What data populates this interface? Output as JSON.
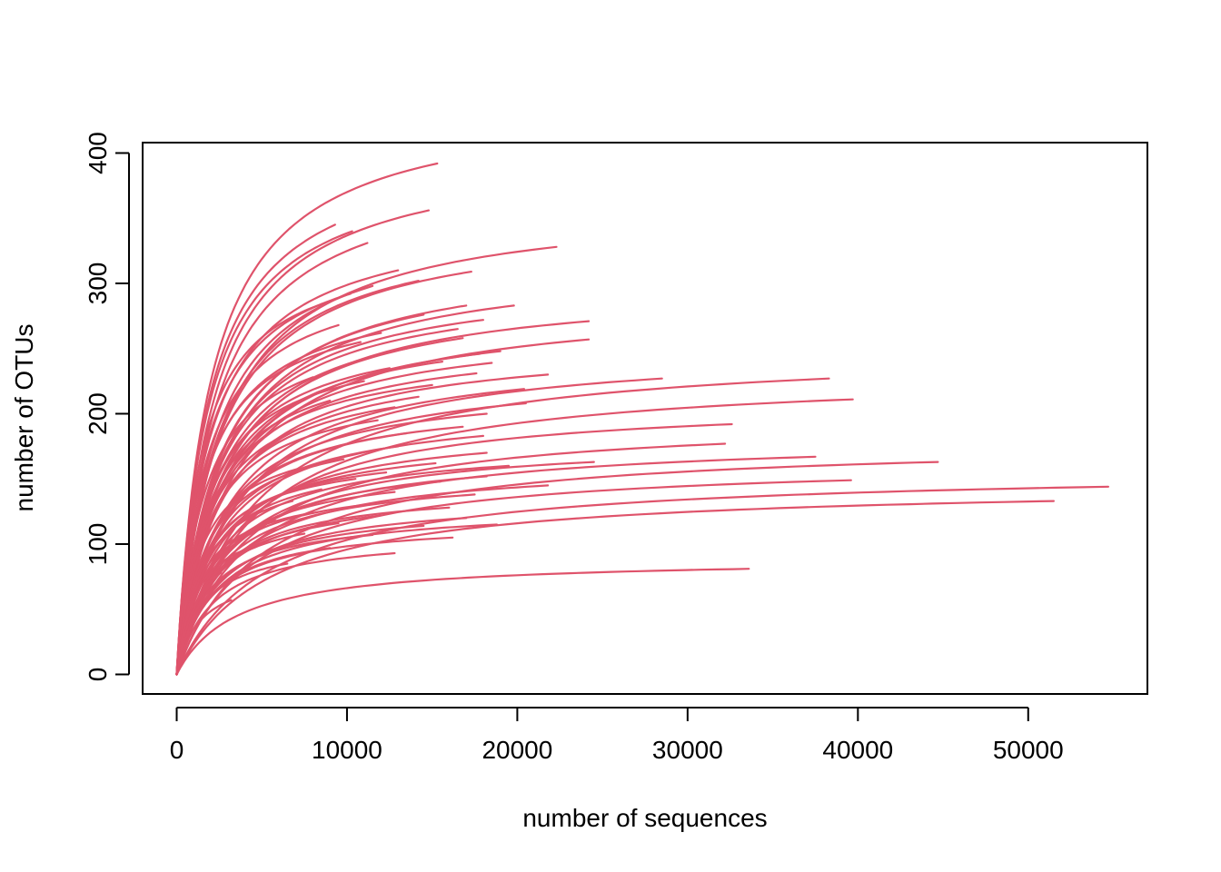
{
  "chart_data": {
    "type": "line",
    "title": "",
    "xlabel": "number of sequences",
    "ylabel": "number of OTUs",
    "xlim": [
      -2000,
      57000
    ],
    "ylim": [
      -15,
      408
    ],
    "xticks": [
      0,
      10000,
      20000,
      30000,
      40000,
      50000
    ],
    "yticks": [
      0,
      100,
      200,
      300,
      400
    ],
    "xtick_labels": [
      "0",
      "10000",
      "20000",
      "30000",
      "40000",
      "50000"
    ],
    "ytick_labels": [
      "0",
      "100",
      "200",
      "300",
      "400"
    ],
    "grid": false,
    "line_color": "#DF536B",
    "series": [
      {
        "n": 15300,
        "s": 392
      },
      {
        "n": 14800,
        "s": 356
      },
      {
        "n": 10300,
        "s": 340
      },
      {
        "n": 9300,
        "s": 345
      },
      {
        "n": 11200,
        "s": 331
      },
      {
        "n": 22300,
        "s": 328
      },
      {
        "n": 13000,
        "s": 310
      },
      {
        "n": 17300,
        "s": 309
      },
      {
        "n": 14200,
        "s": 302
      },
      {
        "n": 11500,
        "s": 298
      },
      {
        "n": 8700,
        "s": 285
      },
      {
        "n": 10200,
        "s": 292
      },
      {
        "n": 19800,
        "s": 283
      },
      {
        "n": 17000,
        "s": 283
      },
      {
        "n": 14500,
        "s": 276
      },
      {
        "n": 24200,
        "s": 271
      },
      {
        "n": 18000,
        "s": 272
      },
      {
        "n": 16500,
        "s": 265
      },
      {
        "n": 24200,
        "s": 257
      },
      {
        "n": 16800,
        "s": 258
      },
      {
        "n": 12000,
        "s": 262
      },
      {
        "n": 9500,
        "s": 268
      },
      {
        "n": 19000,
        "s": 248
      },
      {
        "n": 17800,
        "s": 246
      },
      {
        "n": 13500,
        "s": 250
      },
      {
        "n": 10800,
        "s": 255
      },
      {
        "n": 18500,
        "s": 239
      },
      {
        "n": 15600,
        "s": 240
      },
      {
        "n": 28500,
        "s": 227
      },
      {
        "n": 38300,
        "s": 227
      },
      {
        "n": 21800,
        "s": 230
      },
      {
        "n": 17600,
        "s": 231
      },
      {
        "n": 12500,
        "s": 235
      },
      {
        "n": 39700,
        "s": 211
      },
      {
        "n": 20400,
        "s": 219
      },
      {
        "n": 15000,
        "s": 222
      },
      {
        "n": 11000,
        "s": 225
      },
      {
        "n": 8000,
        "s": 228
      },
      {
        "n": 14200,
        "s": 213
      },
      {
        "n": 20500,
        "s": 208
      },
      {
        "n": 32600,
        "s": 192
      },
      {
        "n": 18200,
        "s": 200
      },
      {
        "n": 12800,
        "s": 205
      },
      {
        "n": 9000,
        "s": 210
      },
      {
        "n": 32200,
        "s": 177
      },
      {
        "n": 16800,
        "s": 190
      },
      {
        "n": 11800,
        "s": 195
      },
      {
        "n": 18000,
        "s": 183
      },
      {
        "n": 13500,
        "s": 185
      },
      {
        "n": 7500,
        "s": 190
      },
      {
        "n": 37500,
        "s": 167
      },
      {
        "n": 24500,
        "s": 163
      },
      {
        "n": 18200,
        "s": 170
      },
      {
        "n": 13000,
        "s": 175
      },
      {
        "n": 44700,
        "s": 163
      },
      {
        "n": 19500,
        "s": 160
      },
      {
        "n": 15200,
        "s": 162
      },
      {
        "n": 9800,
        "s": 165
      },
      {
        "n": 39600,
        "s": 149
      },
      {
        "n": 18200,
        "s": 152
      },
      {
        "n": 12300,
        "s": 155
      },
      {
        "n": 7200,
        "s": 158
      },
      {
        "n": 54700,
        "s": 144
      },
      {
        "n": 21800,
        "s": 145
      },
      {
        "n": 15500,
        "s": 148
      },
      {
        "n": 10500,
        "s": 150
      },
      {
        "n": 17500,
        "s": 138
      },
      {
        "n": 12800,
        "s": 140
      },
      {
        "n": 8500,
        "s": 142
      },
      {
        "n": 51500,
        "s": 133
      },
      {
        "n": 16000,
        "s": 128
      },
      {
        "n": 11000,
        "s": 130
      },
      {
        "n": 6800,
        "s": 133
      },
      {
        "n": 17000,
        "s": 120
      },
      {
        "n": 12000,
        "s": 122
      },
      {
        "n": 8000,
        "s": 124
      },
      {
        "n": 18800,
        "s": 115
      },
      {
        "n": 14500,
        "s": 114
      },
      {
        "n": 9500,
        "s": 116
      },
      {
        "n": 5800,
        "s": 118
      },
      {
        "n": 16200,
        "s": 105
      },
      {
        "n": 11500,
        "s": 107
      },
      {
        "n": 7500,
        "s": 108
      },
      {
        "n": 12800,
        "s": 93
      },
      {
        "n": 9000,
        "s": 97
      },
      {
        "n": 5000,
        "s": 100
      },
      {
        "n": 33600,
        "s": 81
      },
      {
        "n": 6500,
        "s": 85
      },
      {
        "n": 3200,
        "s": 57
      },
      {
        "n": 2600,
        "s": 78
      }
    ]
  }
}
